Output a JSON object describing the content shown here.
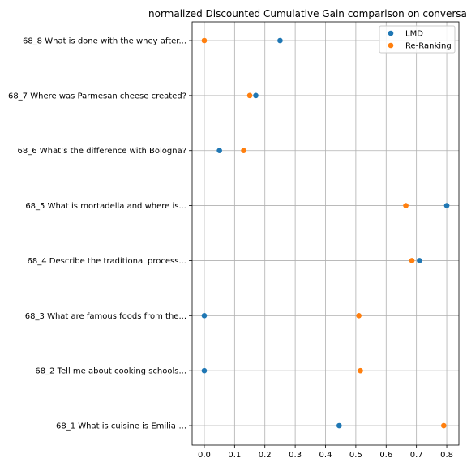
{
  "chart_data": {
    "type": "scatter",
    "title": "normalized Discounted Cumulative Gain comparison on conversa",
    "xlabel": "",
    "ylabel": "",
    "xlim": [
      -0.04,
      0.84
    ],
    "xticks": [
      0.0,
      0.1,
      0.2,
      0.3,
      0.4,
      0.5,
      0.6,
      0.7,
      0.8
    ],
    "xtick_labels": [
      "0.0",
      "0.1",
      "0.2",
      "0.3",
      "0.4",
      "0.5",
      "0.6",
      "0.7",
      "0.8"
    ],
    "grid": true,
    "legend_position": "top-right",
    "categories": [
      "68_8 What is done with the whey after...",
      "68_7 Where was Parmesan cheese created?",
      "68_6 What’s the difference with Bologna?",
      "68_5 What is mortadella and where is...",
      "68_4 Describe the traditional process...",
      "68_3 What are famous foods from the...",
      "68_2 Tell me about cooking schools...",
      "68_1 What is cuisine is Emilia-..."
    ],
    "series": [
      {
        "name": "LMD",
        "color": "#1f77b4",
        "values": [
          0.25,
          0.17,
          0.05,
          0.8,
          0.71,
          0.0,
          0.0,
          0.445
        ]
      },
      {
        "name": "Re-Ranking",
        "color": "#ff7f0e",
        "values": [
          0.0,
          0.15,
          0.13,
          0.665,
          0.685,
          0.51,
          0.515,
          0.79
        ]
      }
    ]
  }
}
